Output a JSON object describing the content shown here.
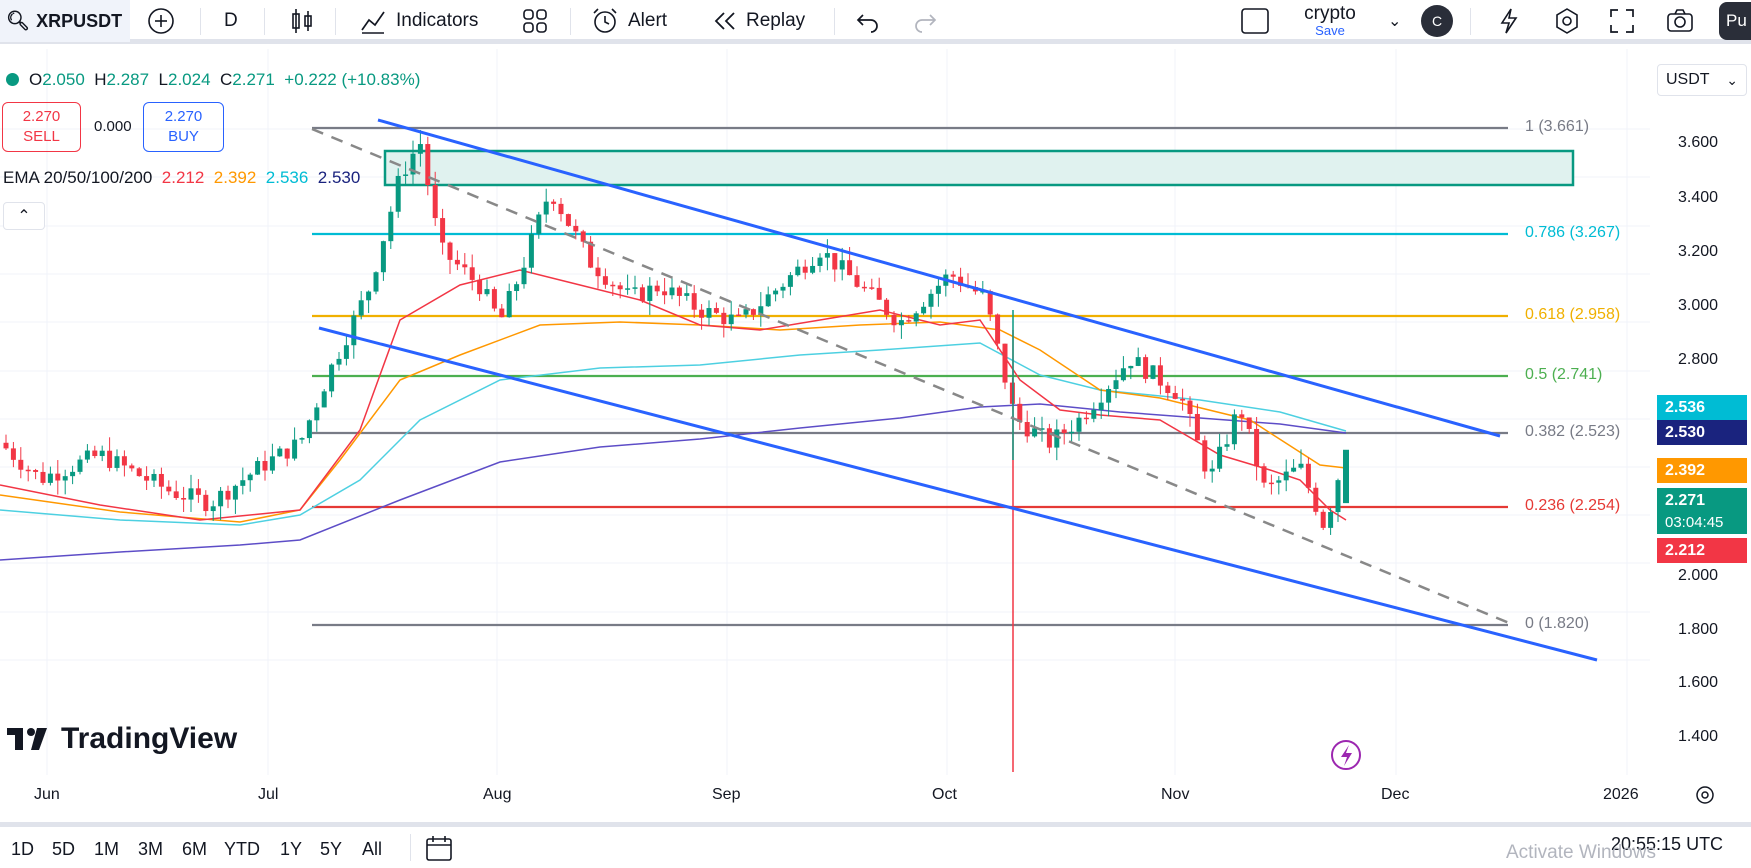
{
  "toolbar": {
    "symbol": "XRPUSDT",
    "interval": "D",
    "indicators_label": "Indicators",
    "alert_label": "Alert",
    "replay_label": "Replay",
    "layout_name": "crypto",
    "layout_save": "Save",
    "avatar_letter": "C",
    "publish_label": "Pu"
  },
  "legend": {
    "o_key": "O",
    "o_val": "2.050",
    "h_key": "H",
    "h_val": "2.287",
    "l_key": "L",
    "l_val": "2.024",
    "c_key": "C",
    "c_val": "2.271",
    "change": "+0.222 (+10.83%)",
    "sell_price": "2.270",
    "sell_label": "SELL",
    "spread": "0.000",
    "buy_price": "2.270",
    "buy_label": "BUY",
    "ema_label": "EMA 20/50/100/200",
    "ema20": "2.212",
    "ema50": "2.392",
    "ema100": "2.536",
    "ema200": "2.530"
  },
  "currency": "USDT",
  "price_axis": [
    "3.600",
    "3.400",
    "3.200",
    "3.000",
    "2.800",
    "2.000",
    "1.800",
    "1.600",
    "1.400"
  ],
  "price_labels": [
    {
      "text": "2.536",
      "color": "#00bcd4"
    },
    {
      "text": "2.530",
      "color": "#1a237e"
    },
    {
      "text": "2.392",
      "color": "#ff9800"
    },
    {
      "text": "2.271",
      "color": "#089981"
    },
    {
      "text": "03:04:45",
      "color": "#089981"
    },
    {
      "text": "2.212",
      "color": "#f23645"
    }
  ],
  "fib_levels": [
    {
      "label": "1 (3.661)",
      "color": "#787b86"
    },
    {
      "label": "0.786 (3.267)",
      "color": "#00bcd4"
    },
    {
      "label": "0.618 (2.958)",
      "color": "#f0b000"
    },
    {
      "label": "0.5 (2.741)",
      "color": "#4caf50"
    },
    {
      "label": "0.382 (2.523)",
      "color": "#787b86"
    },
    {
      "label": "0.236 (2.254)",
      "color": "#e53935"
    },
    {
      "label": "0 (1.820)",
      "color": "#787b86"
    }
  ],
  "time_axis": [
    "Jun",
    "Jul",
    "Aug",
    "Sep",
    "Oct",
    "Nov",
    "Dec",
    "2026"
  ],
  "ranges": [
    "1D",
    "5D",
    "1M",
    "3M",
    "6M",
    "YTD",
    "1Y",
    "5Y",
    "All"
  ],
  "clock": "20:55:15 UTC",
  "brand": "TradingView",
  "activate_text": "Activate Windows",
  "colors": {
    "up": "#089981",
    "down": "#f23645",
    "channel": "#2962ff"
  }
}
